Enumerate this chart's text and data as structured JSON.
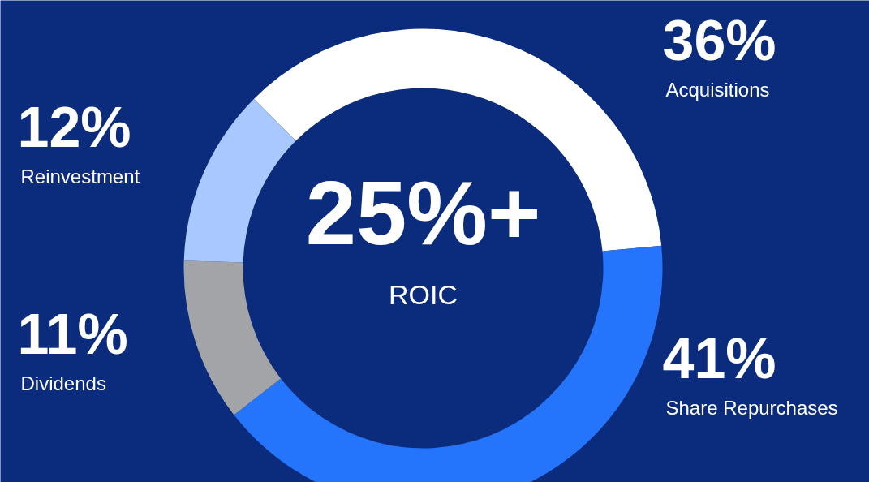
{
  "chart_data": {
    "type": "donut",
    "categories": [
      "Acquisitions",
      "Share Repurchases",
      "Dividends",
      "Reinvestment"
    ],
    "values": [
      36,
      41,
      11,
      12
    ],
    "colors": [
      "#ffffff",
      "#2575fc",
      "#a2a4a7",
      "#a9c8ff"
    ],
    "value_labels": [
      "36%",
      "41%",
      "11%",
      "12%"
    ],
    "annotations": [
      "25%+",
      "ROIC"
    ],
    "legend": false
  }
}
